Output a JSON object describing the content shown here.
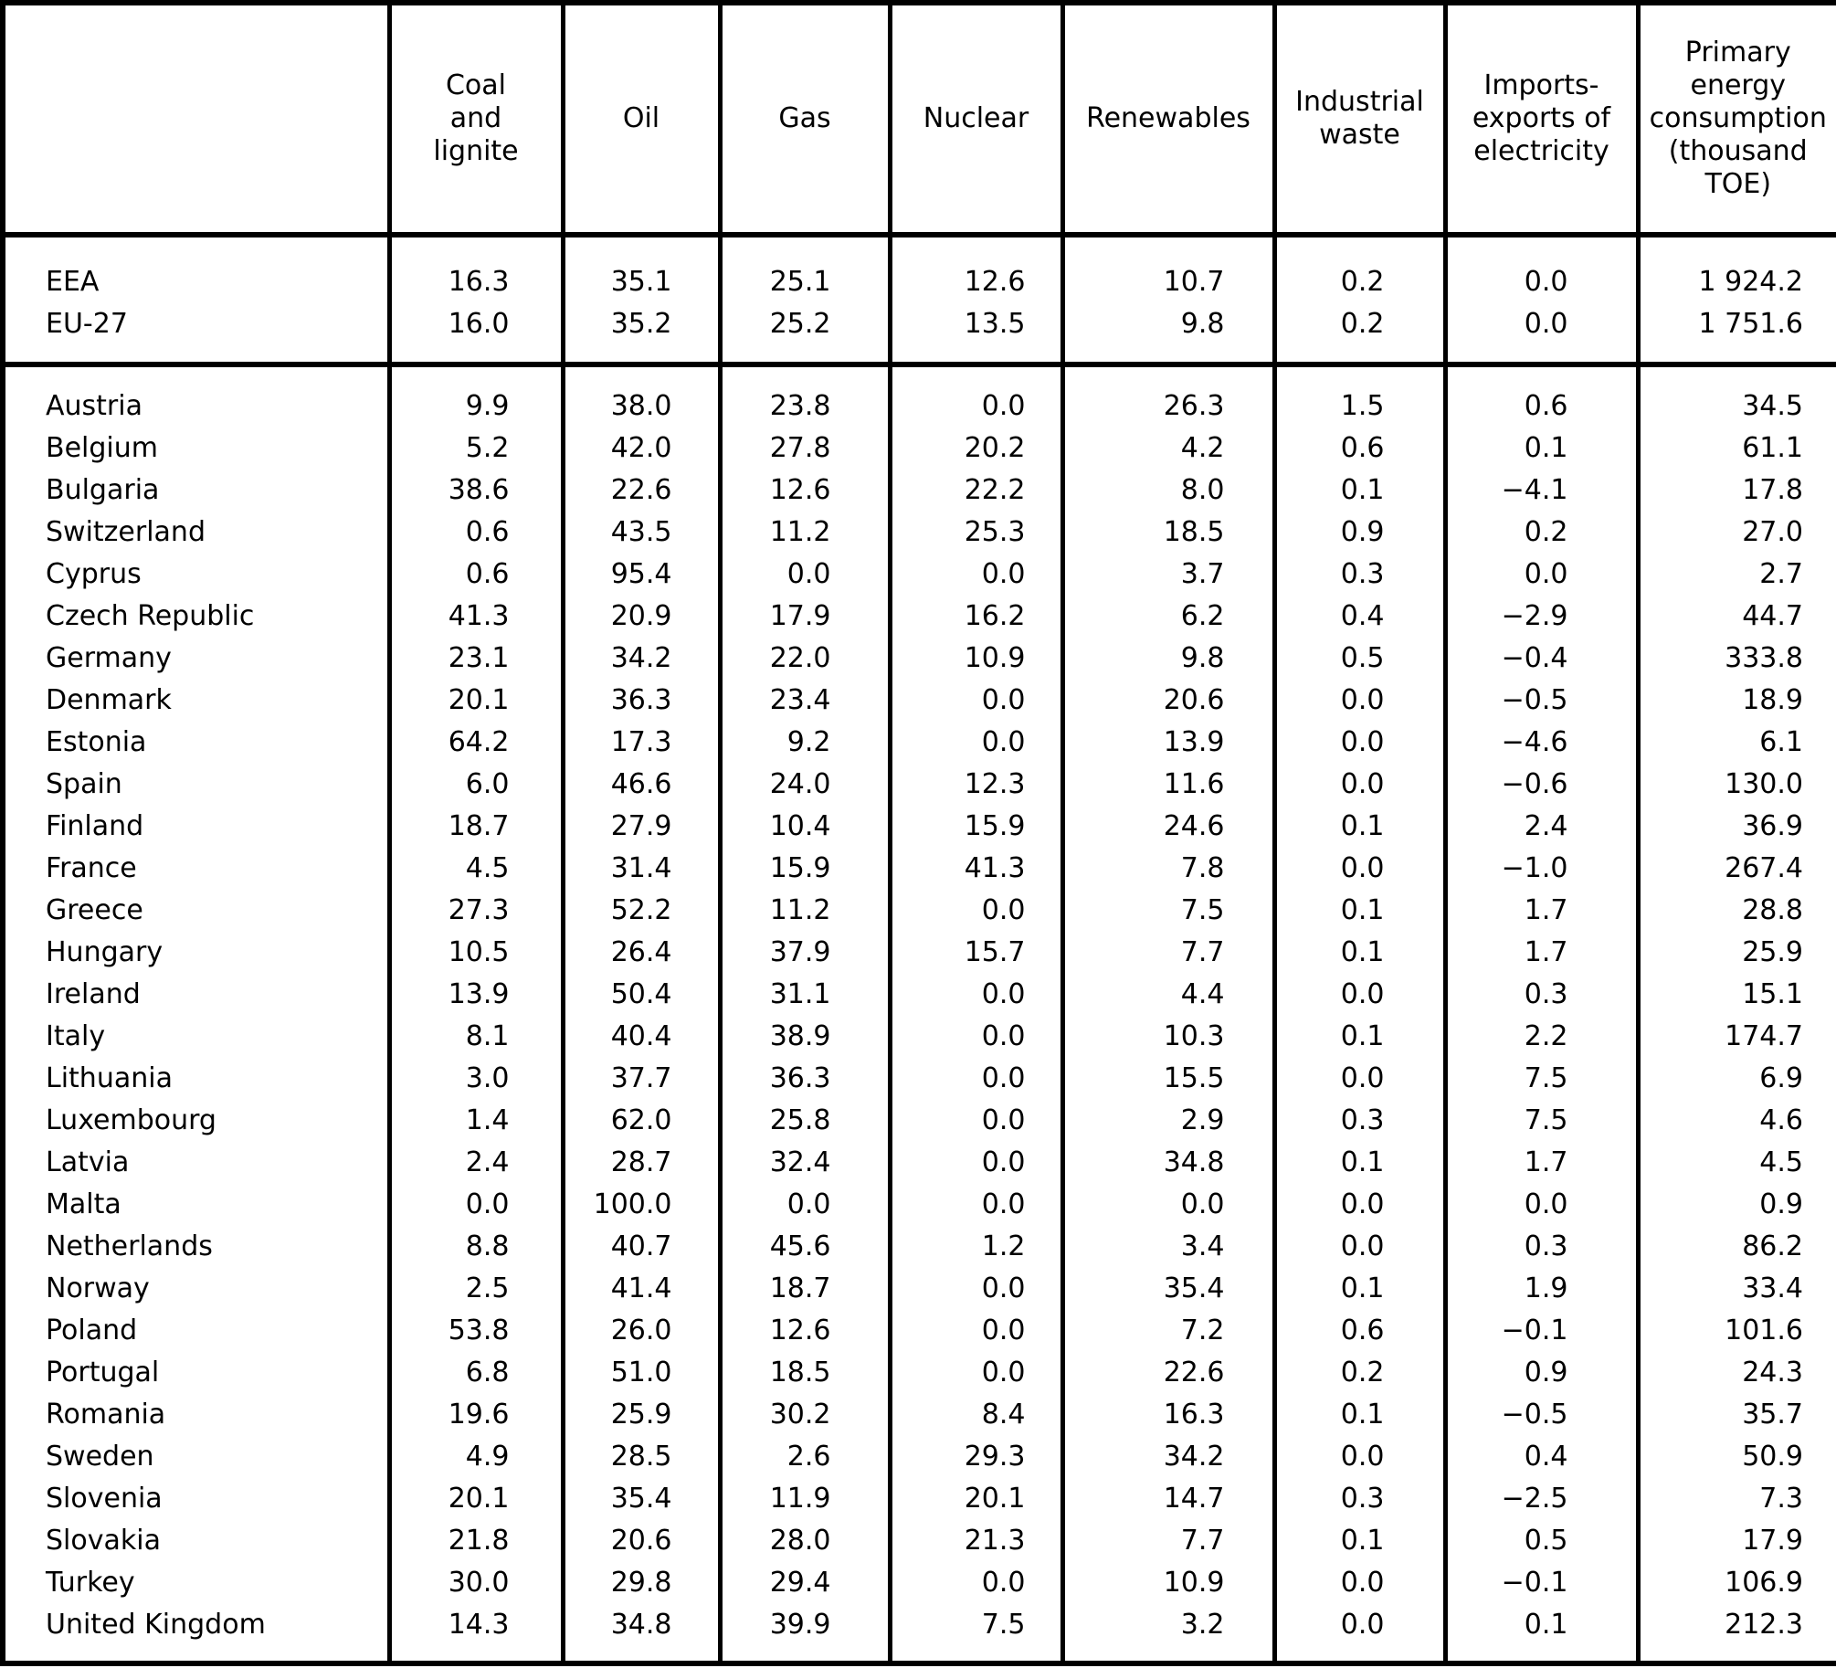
{
  "colors": {
    "border": "#000000",
    "text": "#000000",
    "background": "#ffffff"
  },
  "chart_data": {
    "type": "table",
    "columns": [
      "",
      "Coal\nand\nlignite",
      "Oil",
      "Gas",
      "Nuclear",
      "Renewables",
      "Industrial\nwaste",
      "Imports-\nexports of\nelectricity",
      "Primary\nenergy\nconsumption\n(thousand\nTOE)"
    ],
    "aggregates": [
      {
        "name": "EEA",
        "values": [
          "16.3",
          "35.1",
          "25.1",
          "12.6",
          "10.7",
          "0.2",
          "0.0",
          "1 924.2"
        ]
      },
      {
        "name": "EU-27",
        "values": [
          "16.0",
          "35.2",
          "25.2",
          "13.5",
          "9.8",
          "0.2",
          "0.0",
          "1 751.6"
        ]
      }
    ],
    "countries": [
      {
        "name": "Austria",
        "values": [
          "9.9",
          "38.0",
          "23.8",
          "0.0",
          "26.3",
          "1.5",
          "0.6",
          "34.5"
        ]
      },
      {
        "name": "Belgium",
        "values": [
          "5.2",
          "42.0",
          "27.8",
          "20.2",
          "4.2",
          "0.6",
          "0.1",
          "61.1"
        ]
      },
      {
        "name": "Bulgaria",
        "values": [
          "38.6",
          "22.6",
          "12.6",
          "22.2",
          "8.0",
          "0.1",
          "−4.1",
          "17.8"
        ]
      },
      {
        "name": "Switzerland",
        "values": [
          "0.6",
          "43.5",
          "11.2",
          "25.3",
          "18.5",
          "0.9",
          "0.2",
          "27.0"
        ]
      },
      {
        "name": "Cyprus",
        "values": [
          "0.6",
          "95.4",
          "0.0",
          "0.0",
          "3.7",
          "0.3",
          "0.0",
          "2.7"
        ]
      },
      {
        "name": "Czech Republic",
        "values": [
          "41.3",
          "20.9",
          "17.9",
          "16.2",
          "6.2",
          "0.4",
          "−2.9",
          "44.7"
        ]
      },
      {
        "name": "Germany",
        "values": [
          "23.1",
          "34.2",
          "22.0",
          "10.9",
          "9.8",
          "0.5",
          "−0.4",
          "333.8"
        ]
      },
      {
        "name": "Denmark",
        "values": [
          "20.1",
          "36.3",
          "23.4",
          "0.0",
          "20.6",
          "0.0",
          "−0.5",
          "18.9"
        ]
      },
      {
        "name": "Estonia",
        "values": [
          "64.2",
          "17.3",
          "9.2",
          "0.0",
          "13.9",
          "0.0",
          "−4.6",
          "6.1"
        ]
      },
      {
        "name": "Spain",
        "values": [
          "6.0",
          "46.6",
          "24.0",
          "12.3",
          "11.6",
          "0.0",
          "−0.6",
          "130.0"
        ]
      },
      {
        "name": "Finland",
        "values": [
          "18.7",
          "27.9",
          "10.4",
          "15.9",
          "24.6",
          "0.1",
          "2.4",
          "36.9"
        ]
      },
      {
        "name": "France",
        "values": [
          "4.5",
          "31.4",
          "15.9",
          "41.3",
          "7.8",
          "0.0",
          "−1.0",
          "267.4"
        ]
      },
      {
        "name": "Greece",
        "values": [
          "27.3",
          "52.2",
          "11.2",
          "0.0",
          "7.5",
          "0.1",
          "1.7",
          "28.8"
        ]
      },
      {
        "name": "Hungary",
        "values": [
          "10.5",
          "26.4",
          "37.9",
          "15.7",
          "7.7",
          "0.1",
          "1.7",
          "25.9"
        ]
      },
      {
        "name": "Ireland",
        "values": [
          "13.9",
          "50.4",
          "31.1",
          "0.0",
          "4.4",
          "0.0",
          "0.3",
          "15.1"
        ]
      },
      {
        "name": "Italy",
        "values": [
          "8.1",
          "40.4",
          "38.9",
          "0.0",
          "10.3",
          "0.1",
          "2.2",
          "174.7"
        ]
      },
      {
        "name": "Lithuania",
        "values": [
          "3.0",
          "37.7",
          "36.3",
          "0.0",
          "15.5",
          "0.0",
          "7.5",
          "6.9"
        ]
      },
      {
        "name": "Luxembourg",
        "values": [
          "1.4",
          "62.0",
          "25.8",
          "0.0",
          "2.9",
          "0.3",
          "7.5",
          "4.6"
        ]
      },
      {
        "name": "Latvia",
        "values": [
          "2.4",
          "28.7",
          "32.4",
          "0.0",
          "34.8",
          "0.1",
          "1.7",
          "4.5"
        ]
      },
      {
        "name": "Malta",
        "values": [
          "0.0",
          "100.0",
          "0.0",
          "0.0",
          "0.0",
          "0.0",
          "0.0",
          "0.9"
        ]
      },
      {
        "name": "Netherlands",
        "values": [
          "8.8",
          "40.7",
          "45.6",
          "1.2",
          "3.4",
          "0.0",
          "0.3",
          "86.2"
        ]
      },
      {
        "name": "Norway",
        "values": [
          "2.5",
          "41.4",
          "18.7",
          "0.0",
          "35.4",
          "0.1",
          "1.9",
          "33.4"
        ]
      },
      {
        "name": "Poland",
        "values": [
          "53.8",
          "26.0",
          "12.6",
          "0.0",
          "7.2",
          "0.6",
          "−0.1",
          "101.6"
        ]
      },
      {
        "name": "Portugal",
        "values": [
          "6.8",
          "51.0",
          "18.5",
          "0.0",
          "22.6",
          "0.2",
          "0.9",
          "24.3"
        ]
      },
      {
        "name": "Romania",
        "values": [
          "19.6",
          "25.9",
          "30.2",
          "8.4",
          "16.3",
          "0.1",
          "−0.5",
          "35.7"
        ]
      },
      {
        "name": "Sweden",
        "values": [
          "4.9",
          "28.5",
          "2.6",
          "29.3",
          "34.2",
          "0.0",
          "0.4",
          "50.9"
        ]
      },
      {
        "name": "Slovenia",
        "values": [
          "20.1",
          "35.4",
          "11.9",
          "20.1",
          "14.7",
          "0.3",
          "−2.5",
          "7.3"
        ]
      },
      {
        "name": "Slovakia",
        "values": [
          "21.8",
          "20.6",
          "28.0",
          "21.3",
          "7.7",
          "0.1",
          "0.5",
          "17.9"
        ]
      },
      {
        "name": "Turkey",
        "values": [
          "30.0",
          "29.8",
          "29.4",
          "0.0",
          "10.9",
          "0.0",
          "−0.1",
          "106.9"
        ]
      },
      {
        "name": "United Kingdom",
        "values": [
          "14.3",
          "34.8",
          "39.9",
          "7.5",
          "3.2",
          "0.0",
          "0.1",
          "212.3"
        ]
      }
    ]
  }
}
